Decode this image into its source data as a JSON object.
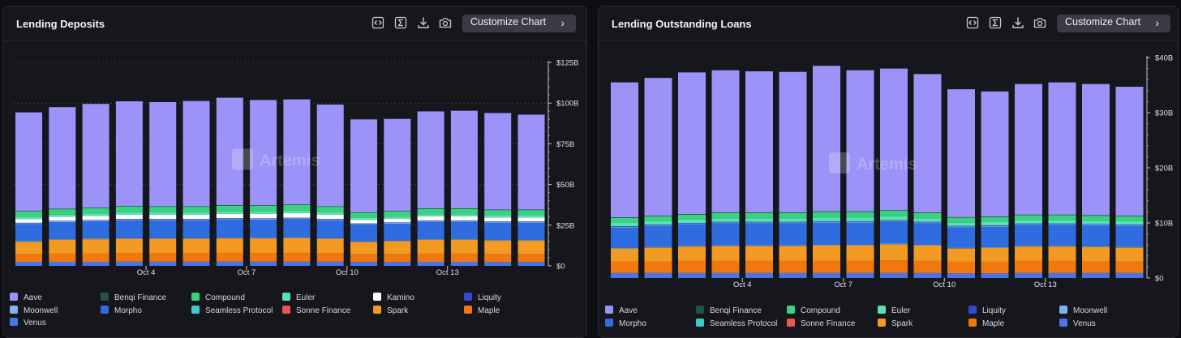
{
  "panels": [
    {
      "title": "Lending Deposits",
      "customize_label": "Customize Chart",
      "watermark": "Artemis",
      "legend_cols": 6,
      "icons": [
        "code-icon",
        "sigma-icon",
        "download-icon",
        "camera-icon"
      ]
    },
    {
      "title": "Lending Outstanding Loans",
      "customize_label": "Customize Chart",
      "watermark": "Artemis",
      "legend_cols": 6,
      "icons": [
        "code-icon",
        "sigma-icon",
        "download-icon",
        "camera-icon"
      ]
    }
  ],
  "chart_data": [
    {
      "type": "bar",
      "stacked": true,
      "title": "Lending Deposits",
      "x_tick_labels": [
        {
          "index": 3,
          "label": "Oct 4"
        },
        {
          "index": 6,
          "label": "Oct 7"
        },
        {
          "index": 9,
          "label": "Oct 10"
        },
        {
          "index": 12,
          "label": "Oct 13"
        }
      ],
      "categories": [
        "Oct 1",
        "Oct 2",
        "Oct 3",
        "Oct 4",
        "Oct 5",
        "Oct 6",
        "Oct 7",
        "Oct 8",
        "Oct 9",
        "Oct 10",
        "Oct 11",
        "Oct 12",
        "Oct 13",
        "Oct 14",
        "Oct 15",
        "Oct 16"
      ],
      "y_ticks": [
        "$0",
        "$25B",
        "$50B",
        "$75B",
        "$100B",
        "$125B"
      ],
      "ylim": [
        0,
        125
      ],
      "grid": true,
      "legend_position": "bottom",
      "series": [
        {
          "name": "Venus",
          "color": "#4a74e8",
          "values": [
            2.5,
            2.5,
            2.5,
            2.6,
            2.6,
            2.6,
            2.7,
            2.6,
            2.6,
            2.6,
            2.4,
            2.4,
            2.5,
            2.5,
            2.4,
            2.4
          ]
        },
        {
          "name": "Maple",
          "color": "#f0780f",
          "values": [
            4.8,
            5,
            5,
            5.2,
            5.2,
            5.2,
            5.3,
            5.2,
            5.3,
            5.2,
            4.9,
            4.9,
            5,
            5,
            4.9,
            4.9
          ]
        },
        {
          "name": "Spark",
          "color": "#f39a22",
          "values": [
            7.5,
            8.5,
            8.8,
            8.8,
            8.8,
            8.8,
            8.9,
            9,
            9.2,
            8.8,
            7.4,
            7.8,
            8.5,
            8.5,
            8.2,
            8.2
          ]
        },
        {
          "name": "Sonne Finance",
          "color": "#e7584f",
          "values": [
            0.1,
            0.1,
            0.1,
            0.1,
            0.1,
            0.1,
            0.1,
            0.1,
            0.1,
            0.1,
            0.1,
            0.1,
            0.1,
            0.1,
            0.1,
            0.1
          ]
        },
        {
          "name": "Seamless Protocol",
          "color": "#3ec9c6",
          "values": [
            0.3,
            0.3,
            0.3,
            0.3,
            0.3,
            0.3,
            0.3,
            0.3,
            0.3,
            0.3,
            0.3,
            0.3,
            0.3,
            0.3,
            0.3,
            0.3
          ]
        },
        {
          "name": "Morpho",
          "color": "#2f6ce0",
          "values": [
            10.5,
            10.5,
            10.7,
            11,
            11,
            11,
            11.2,
            11.2,
            11.3,
            11,
            10.2,
            10.4,
            10.7,
            10.7,
            10.6,
            10.6
          ]
        },
        {
          "name": "Moonwell",
          "color": "#7fb2f0",
          "values": [
            0.5,
            0.5,
            0.5,
            0.5,
            0.5,
            0.5,
            0.5,
            0.5,
            0.5,
            0.5,
            0.5,
            0.5,
            0.5,
            0.5,
            0.5,
            0.5
          ]
        },
        {
          "name": "Liquity",
          "color": "#3548d2",
          "values": [
            0.3,
            0.3,
            0.3,
            0.3,
            0.3,
            0.3,
            0.3,
            0.3,
            0.3,
            0.3,
            0.3,
            0.3,
            0.3,
            0.3,
            0.3,
            0.3
          ]
        },
        {
          "name": "Kamino",
          "color": "#ffffff",
          "values": [
            2.3,
            2.4,
            2.5,
            2.6,
            2.6,
            2.6,
            2.7,
            2.7,
            2.8,
            2.6,
            2.2,
            2.3,
            2.5,
            2.5,
            2.4,
            2.4
          ]
        },
        {
          "name": "Euler",
          "color": "#55e3b4",
          "values": [
            1.4,
            1.4,
            1.4,
            1.5,
            1.5,
            1.5,
            1.5,
            1.5,
            1.5,
            1.5,
            1.3,
            1.3,
            1.4,
            1.4,
            1.4,
            1.4
          ]
        },
        {
          "name": "Compound",
          "color": "#3ad27f",
          "values": [
            3.2,
            3.3,
            3.3,
            3.5,
            3.4,
            3.4,
            3.5,
            3.5,
            3.5,
            3.4,
            3,
            3.1,
            3.2,
            3.2,
            3.2,
            3.2
          ]
        },
        {
          "name": "Benqi Finance",
          "color": "#1f5446",
          "values": [
            0.3,
            0.3,
            0.3,
            0.3,
            0.3,
            0.3,
            0.3,
            0.3,
            0.3,
            0.3,
            0.3,
            0.3,
            0.3,
            0.3,
            0.3,
            0.3
          ]
        },
        {
          "name": "Aave",
          "color": "#9b93f7",
          "values": [
            60.6,
            62.4,
            63.8,
            64.4,
            64,
            64.7,
            66,
            64.7,
            64.6,
            62.5,
            57.1,
            56.6,
            59.6,
            60,
            59.3,
            58.3
          ]
        }
      ],
      "legend_order": [
        "Aave",
        "Benqi Finance",
        "Compound",
        "Euler",
        "Kamino",
        "Liquity",
        "Moonwell",
        "Morpho",
        "Seamless Protocol",
        "Sonne Finance",
        "Spark",
        "Maple",
        "Venus"
      ]
    },
    {
      "type": "bar",
      "stacked": true,
      "title": "Lending Outstanding Loans",
      "x_tick_labels": [
        {
          "index": 3,
          "label": "Oct 4"
        },
        {
          "index": 6,
          "label": "Oct 7"
        },
        {
          "index": 9,
          "label": "Oct 10"
        },
        {
          "index": 12,
          "label": "Oct 13"
        }
      ],
      "categories": [
        "Oct 1",
        "Oct 2",
        "Oct 3",
        "Oct 4",
        "Oct 5",
        "Oct 6",
        "Oct 7",
        "Oct 8",
        "Oct 9",
        "Oct 10",
        "Oct 11",
        "Oct 12",
        "Oct 13",
        "Oct 14",
        "Oct 15",
        "Oct 16"
      ],
      "y_ticks": [
        "$0",
        "$10B",
        "$20B",
        "$30B",
        "$40B"
      ],
      "ylim": [
        0,
        40
      ],
      "grid": false,
      "legend_position": "bottom",
      "series": [
        {
          "name": "Venus",
          "color": "#4a74e8",
          "values": [
            0.9,
            0.9,
            0.9,
            0.9,
            0.9,
            0.9,
            0.9,
            0.9,
            0.9,
            0.9,
            0.85,
            0.85,
            0.9,
            0.9,
            0.9,
            0.9
          ]
        },
        {
          "name": "Maple",
          "color": "#f0780f",
          "values": [
            2.1,
            2.1,
            2.2,
            2.2,
            2.2,
            2.2,
            2.2,
            2.2,
            2.3,
            2.2,
            2.1,
            2.1,
            2.2,
            2.2,
            2.1,
            2.1
          ]
        },
        {
          "name": "Spark",
          "color": "#f39a22",
          "values": [
            2.3,
            2.5,
            2.6,
            2.7,
            2.7,
            2.7,
            2.8,
            2.8,
            2.9,
            2.8,
            2.4,
            2.5,
            2.6,
            2.6,
            2.6,
            2.5
          ]
        },
        {
          "name": "Sonne Finance",
          "color": "#e7584f",
          "values": [
            0.05,
            0.05,
            0.05,
            0.05,
            0.05,
            0.05,
            0.05,
            0.05,
            0.05,
            0.05,
            0.05,
            0.05,
            0.05,
            0.05,
            0.05,
            0.05
          ]
        },
        {
          "name": "Seamless Protocol",
          "color": "#3ec9c6",
          "values": [
            0.1,
            0.1,
            0.1,
            0.1,
            0.1,
            0.1,
            0.1,
            0.1,
            0.1,
            0.1,
            0.1,
            0.1,
            0.1,
            0.1,
            0.1,
            0.1
          ]
        },
        {
          "name": "Morpho",
          "color": "#2f6ce0",
          "values": [
            3.7,
            3.8,
            3.9,
            4,
            4,
            4,
            4,
            4,
            4,
            3.9,
            3.7,
            3.7,
            3.8,
            3.8,
            3.8,
            3.8
          ]
        },
        {
          "name": "Moonwell",
          "color": "#7fb2f0",
          "values": [
            0.15,
            0.15,
            0.15,
            0.15,
            0.15,
            0.15,
            0.15,
            0.15,
            0.15,
            0.15,
            0.15,
            0.15,
            0.15,
            0.15,
            0.15,
            0.15
          ]
        },
        {
          "name": "Liquity",
          "color": "#3548d2",
          "values": [
            0.1,
            0.1,
            0.1,
            0.1,
            0.1,
            0.1,
            0.1,
            0.1,
            0.1,
            0.1,
            0.1,
            0.1,
            0.1,
            0.1,
            0.1,
            0.1
          ]
        },
        {
          "name": "Euler",
          "color": "#55e3b4",
          "values": [
            0.6,
            0.6,
            0.6,
            0.65,
            0.65,
            0.65,
            0.7,
            0.7,
            0.7,
            0.65,
            0.6,
            0.6,
            0.6,
            0.6,
            0.6,
            0.6
          ]
        },
        {
          "name": "Compound",
          "color": "#3ad27f",
          "values": [
            0.9,
            0.9,
            0.9,
            0.95,
            0.95,
            0.95,
            1,
            1,
            1,
            0.95,
            0.9,
            0.9,
            0.9,
            0.9,
            0.9,
            0.9
          ]
        },
        {
          "name": "Benqi Finance",
          "color": "#1f5446",
          "values": [
            0.1,
            0.1,
            0.1,
            0.1,
            0.1,
            0.1,
            0.1,
            0.1,
            0.1,
            0.1,
            0.1,
            0.1,
            0.1,
            0.1,
            0.1,
            0.1
          ]
        },
        {
          "name": "Aave",
          "color": "#9b93f7",
          "values": [
            24.5,
            25,
            25.7,
            25.8,
            25.6,
            25.5,
            26.4,
            25.6,
            25.7,
            25.1,
            23.2,
            22.7,
            23.7,
            24,
            23.8,
            23.4
          ]
        }
      ],
      "legend_order": [
        "Aave",
        "Benqi Finance",
        "Compound",
        "Euler",
        "Liquity",
        "Moonwell",
        "Morpho",
        "Seamless Protocol",
        "Sonne Finance",
        "Spark",
        "Maple",
        "Venus"
      ]
    }
  ]
}
